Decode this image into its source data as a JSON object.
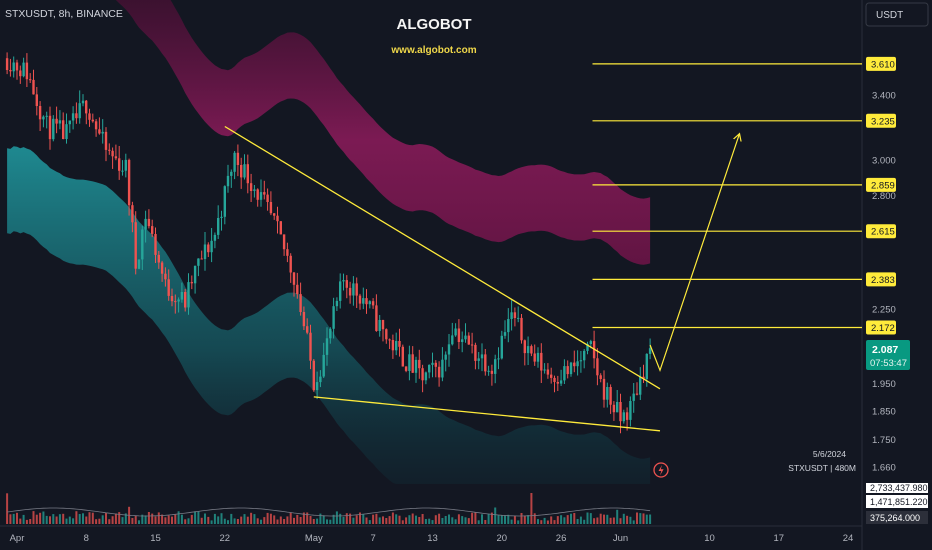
{
  "header": {
    "symbol_label": "STXUSDT, 8h, BINANCE",
    "watermark_title": "ALGOBOT",
    "watermark_url": "www.algobot.com",
    "currency_label": "USDT"
  },
  "info_box": {
    "date": "5/6/2024",
    "series": "STXUSDT | 480M"
  },
  "price_badge": {
    "price": "2.087",
    "countdown": "07:53:47"
  },
  "volume_labels": [
    "2,733,437.980",
    "1,471,851.220",
    "375,264.000"
  ],
  "colors": {
    "background": "#131722",
    "up": "#26a69a",
    "down": "#ef5350",
    "level_lines": "#ffeb3b",
    "upper_band": "#8e1b5c",
    "lower_band": "#1f8f96"
  },
  "chart_data": {
    "type": "candlestick",
    "timeframe": "8h",
    "y_scale": "log",
    "y_ticks": [
      3.4,
      3.0,
      2.8,
      2.25,
      1.95,
      1.85,
      1.75,
      1.66
    ],
    "y_tick_labels": [
      "3.400",
      "3.000",
      "2.800",
      "2.250",
      "1.950",
      "1.850",
      "1.750",
      "1.660"
    ],
    "x_ticks": [
      "2024-04-01",
      "2024-04-08",
      "2024-04-15",
      "2024-04-22",
      "2024-05-01",
      "2024-05-07",
      "2024-05-13",
      "2024-05-20",
      "2024-05-26",
      "2024-06-01",
      "2024-06-10",
      "2024-06-17",
      "2024-06-24"
    ],
    "x_tick_labels": [
      "Apr",
      "8",
      "15",
      "22",
      "May",
      "7",
      "13",
      "20",
      "26",
      "Jun",
      "10",
      "17",
      "24"
    ],
    "target_levels": [
      3.61,
      3.235,
      2.859,
      2.615,
      2.383,
      2.172
    ],
    "target_labels": [
      "3.610",
      "3.235",
      "2.859",
      "2.615",
      "2.383",
      "2.172"
    ],
    "last_price": 2.087,
    "wedge_upper_line": [
      {
        "date": "2024-04-22",
        "price": 3.2
      },
      {
        "date": "2024-06-05",
        "price": 1.93
      }
    ],
    "wedge_lower_line": [
      {
        "date": "2024-05-01",
        "price": 1.9
      },
      {
        "date": "2024-06-05",
        "price": 1.78
      }
    ],
    "projection_path": [
      {
        "date": "2024-06-04",
        "price": 2.1
      },
      {
        "date": "2024-06-05",
        "price": 2.0
      },
      {
        "date": "2024-06-13",
        "price": 3.15
      }
    ],
    "anchors": [
      {
        "date": "2024-03-31",
        "price": 3.65
      },
      {
        "date": "2024-04-02",
        "price": 3.55
      },
      {
        "date": "2024-04-04",
        "price": 3.2
      },
      {
        "date": "2024-04-06",
        "price": 3.15
      },
      {
        "date": "2024-04-08",
        "price": 3.35
      },
      {
        "date": "2024-04-10",
        "price": 3.05
      },
      {
        "date": "2024-04-12",
        "price": 2.95
      },
      {
        "date": "2024-04-13",
        "price": 2.45
      },
      {
        "date": "2024-04-14",
        "price": 2.7
      },
      {
        "date": "2024-04-16",
        "price": 2.35
      },
      {
        "date": "2024-04-18",
        "price": 2.28
      },
      {
        "date": "2024-04-19",
        "price": 2.42
      },
      {
        "date": "2024-04-21",
        "price": 2.6
      },
      {
        "date": "2024-04-23",
        "price": 3.02
      },
      {
        "date": "2024-04-25",
        "price": 2.85
      },
      {
        "date": "2024-04-27",
        "price": 2.65
      },
      {
        "date": "2024-04-29",
        "price": 2.4
      },
      {
        "date": "2024-05-01",
        "price": 1.96
      },
      {
        "date": "2024-05-02",
        "price": 2.05
      },
      {
        "date": "2024-05-04",
        "price": 2.38
      },
      {
        "date": "2024-05-06",
        "price": 2.3
      },
      {
        "date": "2024-05-08",
        "price": 2.15
      },
      {
        "date": "2024-05-10",
        "price": 2.05
      },
      {
        "date": "2024-05-12",
        "price": 1.97
      },
      {
        "date": "2024-05-14",
        "price": 2.02
      },
      {
        "date": "2024-05-15",
        "price": 2.18
      },
      {
        "date": "2024-05-17",
        "price": 2.08
      },
      {
        "date": "2024-05-19",
        "price": 2.02
      },
      {
        "date": "2024-05-21",
        "price": 2.22
      },
      {
        "date": "2024-05-23",
        "price": 2.06
      },
      {
        "date": "2024-05-25",
        "price": 1.98
      },
      {
        "date": "2024-05-27",
        "price": 2.0
      },
      {
        "date": "2024-05-29",
        "price": 2.08
      },
      {
        "date": "2024-05-30",
        "price": 1.95
      },
      {
        "date": "2024-06-01",
        "price": 1.82
      },
      {
        "date": "2024-06-02",
        "price": 1.86
      },
      {
        "date": "2024-06-03",
        "price": 1.97
      },
      {
        "date": "2024-06-04",
        "price": 2.087
      }
    ]
  }
}
